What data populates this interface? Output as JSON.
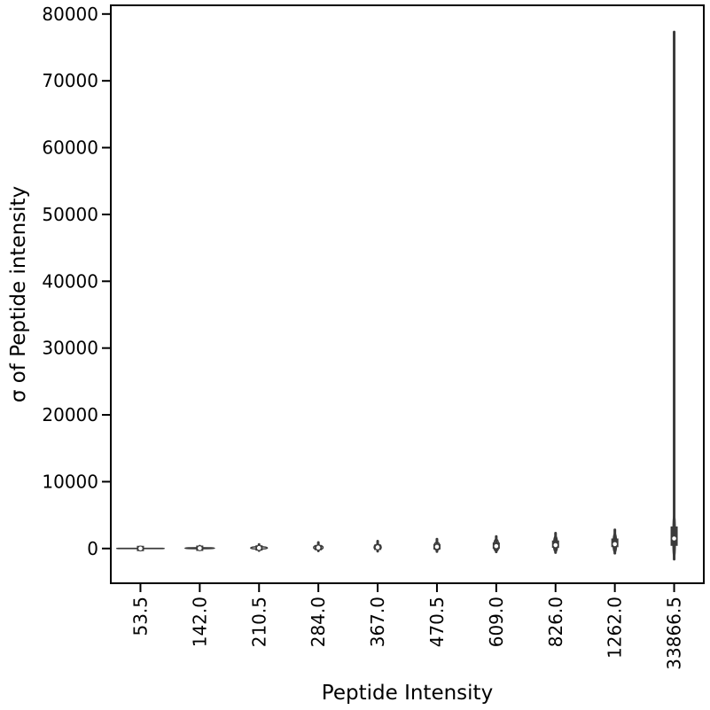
{
  "chart_data": {
    "type": "violin",
    "xlabel": "Peptide Intensity",
    "ylabel": "σ of Peptide intensity",
    "ylim": [
      -5200,
      81300
    ],
    "yticks": [
      0,
      10000,
      20000,
      30000,
      40000,
      50000,
      60000,
      70000,
      80000
    ],
    "categories": [
      "53.5",
      "142.0",
      "210.5",
      "284.0",
      "367.0",
      "470.5",
      "609.0",
      "826.0",
      "1262.0",
      "33866.5"
    ],
    "violins": [
      {
        "median": 5,
        "q1": 0,
        "q3": 20,
        "min": -100,
        "max": 150,
        "max_width_frac": 1.0
      },
      {
        "median": 40,
        "q1": 10,
        "q3": 80,
        "min": -200,
        "max": 350,
        "max_width_frac": 0.62
      },
      {
        "median": 80,
        "q1": 20,
        "q3": 180,
        "min": -300,
        "max": 600,
        "max_width_frac": 0.35
      },
      {
        "median": 130,
        "q1": 40,
        "q3": 300,
        "min": -350,
        "max": 900,
        "max_width_frac": 0.2
      },
      {
        "median": 180,
        "q1": 60,
        "q3": 400,
        "min": -400,
        "max": 1100,
        "max_width_frac": 0.15
      },
      {
        "median": 250,
        "q1": 80,
        "q3": 600,
        "min": -450,
        "max": 1400,
        "max_width_frac": 0.12
      },
      {
        "median": 350,
        "q1": 100,
        "q3": 900,
        "min": -500,
        "max": 1800,
        "max_width_frac": 0.1
      },
      {
        "median": 500,
        "q1": 150,
        "q3": 1200,
        "min": -600,
        "max": 2300,
        "max_width_frac": 0.08
      },
      {
        "median": 650,
        "q1": 200,
        "q3": 1500,
        "min": -700,
        "max": 2800,
        "max_width_frac": 0.07
      },
      {
        "median": 1500,
        "q1": 400,
        "q3": 3300,
        "min": -1600,
        "max": 77300,
        "max_width_frac": 0.05
      }
    ],
    "grid": false,
    "legend": "none",
    "colors": {
      "body": "#ffffff",
      "box": "#3b3b3b",
      "median": "#ffffff",
      "axis": "#000000"
    }
  }
}
